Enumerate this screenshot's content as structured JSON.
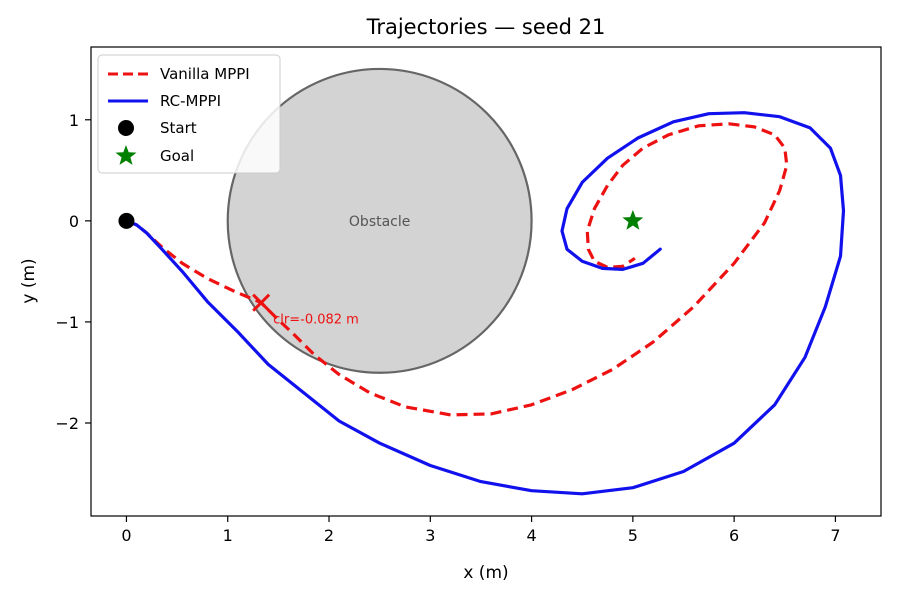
{
  "chart_data": {
    "type": "line",
    "title": "Trajectories — seed 21",
    "xlabel": "x (m)",
    "ylabel": "y (m)",
    "xlim": [
      -0.35,
      7.45
    ],
    "ylim": [
      -2.92,
      1.72
    ],
    "xticks": [
      0,
      1,
      2,
      3,
      4,
      5,
      6,
      7
    ],
    "yticks": [
      -2,
      -1,
      0,
      1
    ],
    "grid": false,
    "legend_position": "top-left",
    "series": [
      {
        "name": "Vanilla MPPI",
        "style": "dashed",
        "color": "#ee1111",
        "x": [
          0.0,
          0.1,
          0.2,
          0.35,
          0.55,
          0.8,
          1.05,
          1.33,
          1.4,
          1.5,
          1.65,
          1.85,
          2.1,
          2.4,
          2.75,
          3.2,
          3.6,
          4.0,
          4.4,
          4.8,
          5.2,
          5.6,
          6.0,
          6.3,
          6.45,
          6.52,
          6.5,
          6.4,
          6.2,
          5.95,
          5.65,
          5.35,
          5.1,
          4.9,
          4.75,
          4.62,
          4.55,
          4.56,
          4.62,
          4.75,
          4.9,
          5.02
        ],
        "y": [
          0.0,
          -0.04,
          -0.12,
          -0.26,
          -0.42,
          -0.57,
          -0.69,
          -0.81,
          -0.88,
          -0.98,
          -1.12,
          -1.32,
          -1.52,
          -1.7,
          -1.84,
          -1.92,
          -1.91,
          -1.82,
          -1.67,
          -1.47,
          -1.2,
          -0.85,
          -0.42,
          -0.02,
          0.3,
          0.55,
          0.72,
          0.85,
          0.93,
          0.96,
          0.94,
          0.85,
          0.72,
          0.55,
          0.35,
          0.12,
          -0.1,
          -0.28,
          -0.4,
          -0.46,
          -0.45,
          -0.37
        ]
      },
      {
        "name": "RC-MPPI",
        "style": "solid",
        "color": "#1111ee",
        "x": [
          0.0,
          0.1,
          0.2,
          0.35,
          0.55,
          0.8,
          1.1,
          1.4,
          1.75,
          2.1,
          2.5,
          3.0,
          3.5,
          4.0,
          4.5,
          5.0,
          5.5,
          6.0,
          6.4,
          6.7,
          6.9,
          7.05,
          7.08,
          7.05,
          6.95,
          6.75,
          6.45,
          6.1,
          5.75,
          5.4,
          5.05,
          4.75,
          4.5,
          4.35,
          4.3,
          4.35,
          4.5,
          4.7,
          4.9,
          5.1,
          5.27
        ],
        "y": [
          0.0,
          -0.04,
          -0.12,
          -0.28,
          -0.5,
          -0.8,
          -1.1,
          -1.42,
          -1.7,
          -1.98,
          -2.2,
          -2.42,
          -2.58,
          -2.67,
          -2.7,
          -2.64,
          -2.48,
          -2.2,
          -1.82,
          -1.35,
          -0.85,
          -0.35,
          0.1,
          0.45,
          0.72,
          0.92,
          1.03,
          1.07,
          1.06,
          0.98,
          0.82,
          0.62,
          0.38,
          0.12,
          -0.1,
          -0.28,
          -0.4,
          -0.47,
          -0.48,
          -0.42,
          -0.28
        ]
      }
    ],
    "markers": [
      {
        "name": "Start",
        "x": 0.0,
        "y": 0.0,
        "shape": "circle",
        "color": "#000000"
      },
      {
        "name": "Goal",
        "x": 5.0,
        "y": 0.0,
        "shape": "star",
        "color": "#008000"
      }
    ],
    "obstacle": {
      "label": "Obstacle",
      "cx": 2.5,
      "cy": 0.0,
      "r": 1.5,
      "fill": "#d3d3d3",
      "edge": "#666666"
    },
    "collision": {
      "x": 1.33,
      "y": -0.81,
      "label": "clr=-0.082 m",
      "color": "#ee1111"
    }
  }
}
